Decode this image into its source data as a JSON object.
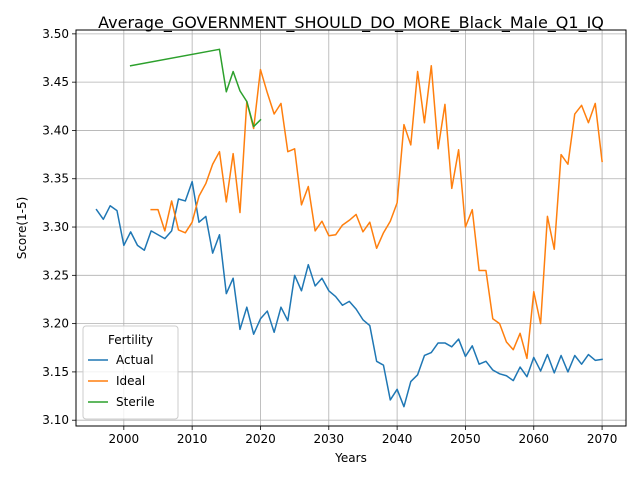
{
  "chart_data": {
    "type": "line",
    "title": "Average_GOVERNMENT_SHOULD_DO_MORE_Black_Male_Q1_IQ",
    "xlabel": "Years",
    "ylabel": "Score(1-5)",
    "xlim": [
      1993,
      2073.5
    ],
    "ylim": [
      3.094,
      3.504
    ],
    "xticks": [
      2000,
      2010,
      2020,
      2030,
      2040,
      2050,
      2060,
      2070
    ],
    "yticks": [
      3.1,
      3.15,
      3.2,
      3.25,
      3.3,
      3.35,
      3.4,
      3.45,
      3.5
    ],
    "xtick_labels": [
      "2000",
      "2010",
      "2020",
      "2030",
      "2040",
      "2050",
      "2060",
      "2070"
    ],
    "ytick_labels": [
      "3.10",
      "3.15",
      "3.20",
      "3.25",
      "3.30",
      "3.35",
      "3.40",
      "3.45",
      "3.50"
    ],
    "grid": true,
    "legend": {
      "title": "Fertility",
      "placement": "lower-left"
    },
    "series": [
      {
        "name": "Actual",
        "color": "#1f77b4",
        "x": [
          1996,
          1997,
          1998,
          1999,
          2000,
          2001,
          2002,
          2003,
          2004,
          2005,
          2006,
          2007,
          2008,
          2009,
          2010,
          2011,
          2012,
          2013,
          2014,
          2015,
          2016,
          2017,
          2018,
          2019,
          2020,
          2021,
          2022,
          2023,
          2024,
          2025,
          2026,
          2027,
          2028,
          2029,
          2030,
          2031,
          2032,
          2033,
          2034,
          2035,
          2036,
          2037,
          2038,
          2039,
          2040,
          2041,
          2042,
          2043,
          2044,
          2045,
          2046,
          2047,
          2048,
          2049,
          2050,
          2051,
          2052,
          2053,
          2054,
          2055,
          2056,
          2057,
          2058,
          2059,
          2060,
          2061,
          2062,
          2063,
          2064,
          2065,
          2066,
          2067,
          2068,
          2069,
          2070
        ],
        "y": [
          3.318,
          3.308,
          3.322,
          3.317,
          3.281,
          3.295,
          3.281,
          3.276,
          3.296,
          3.292,
          3.288,
          3.296,
          3.329,
          3.327,
          3.347,
          3.305,
          3.311,
          3.273,
          3.292,
          3.231,
          3.247,
          3.194,
          3.217,
          3.189,
          3.205,
          3.213,
          3.191,
          3.217,
          3.203,
          3.25,
          3.234,
          3.261,
          3.239,
          3.247,
          3.234,
          3.228,
          3.219,
          3.223,
          3.215,
          3.204,
          3.198,
          3.161,
          3.157,
          3.121,
          3.132,
          3.114,
          3.14,
          3.147,
          3.167,
          3.17,
          3.18,
          3.18,
          3.176,
          3.184,
          3.166,
          3.177,
          3.158,
          3.161,
          3.152,
          3.148,
          3.146,
          3.141,
          3.155,
          3.145,
          3.165,
          3.151,
          3.168,
          3.149,
          3.167,
          3.15,
          3.167,
          3.158,
          3.168,
          3.162,
          3.163
        ]
      },
      {
        "name": "Ideal",
        "color": "#ff7f0e",
        "x": [
          2004,
          2005,
          2006,
          2007,
          2008,
          2009,
          2010,
          2011,
          2012,
          2013,
          2014,
          2015,
          2016,
          2017,
          2018,
          2019,
          2020,
          2021,
          2022,
          2023,
          2024,
          2025,
          2026,
          2027,
          2028,
          2029,
          2030,
          2031,
          2032,
          2033,
          2034,
          2035,
          2036,
          2037,
          2038,
          2039,
          2040,
          2041,
          2042,
          2043,
          2044,
          2045,
          2046,
          2047,
          2048,
          2049,
          2050,
          2051,
          2052,
          2053,
          2054,
          2055,
          2056,
          2057,
          2058,
          2059,
          2060,
          2061,
          2062,
          2063,
          2064,
          2065,
          2066,
          2067,
          2068,
          2069,
          2070
        ],
        "y": [
          3.318,
          3.318,
          3.296,
          3.327,
          3.297,
          3.294,
          3.305,
          3.332,
          3.345,
          3.365,
          3.378,
          3.326,
          3.376,
          3.315,
          3.43,
          3.402,
          3.463,
          3.439,
          3.417,
          3.428,
          3.378,
          3.381,
          3.323,
          3.342,
          3.296,
          3.306,
          3.291,
          3.292,
          3.302,
          3.307,
          3.313,
          3.295,
          3.305,
          3.278,
          3.294,
          3.306,
          3.325,
          3.406,
          3.385,
          3.461,
          3.408,
          3.467,
          3.381,
          3.427,
          3.34,
          3.38,
          3.3,
          3.318,
          3.255,
          3.255,
          3.205,
          3.2,
          3.181,
          3.173,
          3.19,
          3.164,
          3.233,
          3.2,
          3.311,
          3.277,
          3.375,
          3.365,
          3.417,
          3.426,
          3.408,
          3.428,
          3.368
        ]
      },
      {
        "name": "Sterile",
        "color": "#2ca02c",
        "x": [
          2001,
          2014,
          2015,
          2016,
          2017,
          2018,
          2019,
          2020
        ],
        "y": [
          3.467,
          3.484,
          3.44,
          3.461,
          3.441,
          3.43,
          3.404,
          3.411
        ]
      }
    ]
  }
}
